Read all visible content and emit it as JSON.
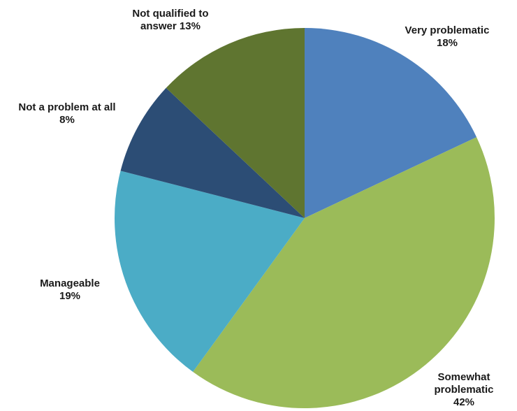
{
  "chart_data": {
    "type": "pie",
    "start_angle_deg": 0,
    "direction": "clockwise",
    "slices": [
      {
        "name": "Very problematic",
        "label_lines": [
          "Very problematic",
          "18%"
        ],
        "value": 18,
        "color": "#4f81bd"
      },
      {
        "name": "Somewhat problematic",
        "label_lines": [
          "Somewhat",
          "problematic",
          "42%"
        ],
        "value": 42,
        "color": "#9bbb59"
      },
      {
        "name": "Manageable",
        "label_lines": [
          "Manageable",
          "19%"
        ],
        "value": 19,
        "color": "#4bacc6"
      },
      {
        "name": "Not a problem at all",
        "label_lines": [
          "Not a problem at all",
          "8%"
        ],
        "value": 8,
        "color": "#2c4d75"
      },
      {
        "name": "Not qualified to answer",
        "label_lines": [
          "Not qualified to",
          "answer 13%"
        ],
        "value": 13,
        "color": "#5f7530"
      }
    ]
  }
}
